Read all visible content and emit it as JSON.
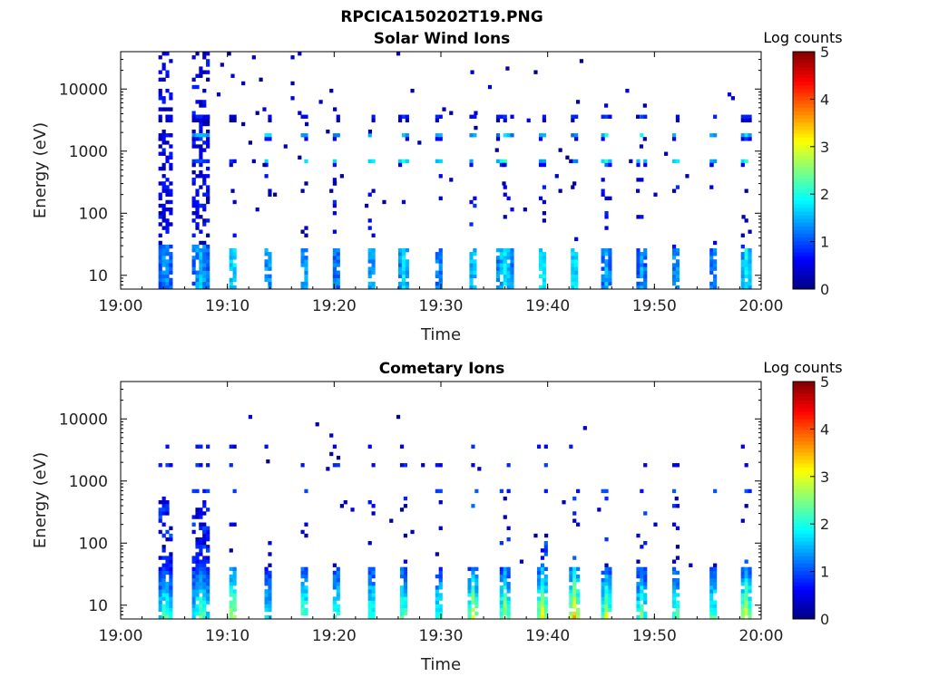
{
  "figure": {
    "title": "RPCICA150202T19.PNG"
  },
  "panels": [
    {
      "title": "Solar Wind Ions",
      "colorbar_label": "Log counts"
    },
    {
      "title": "Cometary Ions",
      "colorbar_label": "Log counts"
    }
  ],
  "chart_data": [
    {
      "type": "heatmap",
      "title": "Solar Wind Ions",
      "xlabel": "Time",
      "ylabel": "Energy (eV)",
      "x_tick_labels": [
        "19:00",
        "19:10",
        "19:20",
        "19:30",
        "19:40",
        "19:50",
        "20:00"
      ],
      "x_range_minutes": [
        0,
        60
      ],
      "y_tick_labels": [
        "10",
        "100",
        "1000",
        "10000"
      ],
      "y_tick_values": [
        10,
        100,
        1000,
        10000
      ],
      "y_scale": "log",
      "y_range": [
        6,
        40000
      ],
      "colorbar": {
        "label": "Log counts",
        "range": [
          0,
          5
        ],
        "ticks": [
          "0",
          "1",
          "2",
          "3",
          "4",
          "5"
        ]
      },
      "bursts": [
        {
          "t": 4.2,
          "w": 1.3,
          "low_e_level": 1.3,
          "band_700": 0.0,
          "band_1700": 0.6,
          "band_3500": 0.6,
          "mid_level": 0.7
        },
        {
          "t": 7.5,
          "w": 1.5,
          "low_e_level": 1.4,
          "band_700": 0.9,
          "band_1700": 1.6,
          "band_3500": 0.7,
          "mid_level": 0.7
        },
        {
          "t": 10.5,
          "w": 0.8,
          "low_e_level": 1.8,
          "band_700": 0.8,
          "band_1700": 0.5,
          "band_3500": 0.4,
          "mid_level": 0.3
        },
        {
          "t": 13.8,
          "w": 0.8,
          "low_e_level": 1.5,
          "band_700": 1.8,
          "band_1700": 1.8,
          "band_3500": 0.8,
          "mid_level": 0.3
        },
        {
          "t": 17.2,
          "w": 0.8,
          "low_e_level": 1.5,
          "band_700": 1.8,
          "band_1700": 1.6,
          "band_3500": 0.8,
          "mid_level": 0.3
        },
        {
          "t": 20.2,
          "w": 0.8,
          "low_e_level": 1.3,
          "band_700": 1.8,
          "band_1700": 1.4,
          "band_3500": 0.6,
          "mid_level": 0.3
        },
        {
          "t": 23.5,
          "w": 0.8,
          "low_e_level": 1.5,
          "band_700": 1.9,
          "band_1700": 1.6,
          "band_3500": 0.8,
          "mid_level": 0.3
        },
        {
          "t": 26.5,
          "w": 0.9,
          "low_e_level": 1.6,
          "band_700": 1.9,
          "band_1700": 1.6,
          "band_3500": 0.8,
          "mid_level": 0.3
        },
        {
          "t": 29.8,
          "w": 0.8,
          "low_e_level": 1.3,
          "band_700": 1.8,
          "band_1700": 1.6,
          "band_3500": 0.8,
          "mid_level": 0.3
        },
        {
          "t": 33.0,
          "w": 0.8,
          "low_e_level": 1.7,
          "band_700": 1.7,
          "band_1700": 1.5,
          "band_3500": 0.8,
          "mid_level": 0.3
        },
        {
          "t": 36.0,
          "w": 1.5,
          "low_e_level": 1.6,
          "band_700": 1.9,
          "band_1700": 1.5,
          "band_3500": 0.8,
          "mid_level": 0.3
        },
        {
          "t": 39.5,
          "w": 0.8,
          "low_e_level": 1.9,
          "band_700": 1.5,
          "band_1700": 1.5,
          "band_3500": 0.8,
          "mid_level": 0.3
        },
        {
          "t": 42.5,
          "w": 0.8,
          "low_e_level": 1.9,
          "band_700": 1.4,
          "band_1700": 1.3,
          "band_3500": 0.8,
          "mid_level": 0.3
        },
        {
          "t": 45.5,
          "w": 1.0,
          "low_e_level": 1.4,
          "band_700": 1.9,
          "band_1700": 1.8,
          "band_3500": 0.8,
          "mid_level": 0.3
        },
        {
          "t": 48.8,
          "w": 1.0,
          "low_e_level": 1.3,
          "band_700": 1.9,
          "band_1700": 1.7,
          "band_3500": 0.8,
          "mid_level": 0.3
        },
        {
          "t": 52.0,
          "w": 0.8,
          "low_e_level": 1.4,
          "band_700": 1.9,
          "band_1700": 1.6,
          "band_3500": 0.8,
          "mid_level": 0.3
        },
        {
          "t": 55.5,
          "w": 0.8,
          "low_e_level": 1.3,
          "band_700": 1.6,
          "band_1700": 1.5,
          "band_3500": 0.8,
          "mid_level": 0.3
        },
        {
          "t": 58.6,
          "w": 0.9,
          "low_e_level": 1.7,
          "band_700": 1.8,
          "band_1700": 1.5,
          "band_3500": 0.8,
          "mid_level": 0.3
        }
      ]
    },
    {
      "type": "heatmap",
      "title": "Cometary Ions",
      "xlabel": "Time",
      "ylabel": "Energy (eV)",
      "x_tick_labels": [
        "19:00",
        "19:10",
        "19:20",
        "19:30",
        "19:40",
        "19:50",
        "20:00"
      ],
      "x_range_minutes": [
        0,
        60
      ],
      "y_tick_labels": [
        "10",
        "100",
        "1000",
        "10000"
      ],
      "y_tick_values": [
        10,
        100,
        1000,
        10000
      ],
      "y_scale": "log",
      "y_range": [
        6,
        40000
      ],
      "colorbar": {
        "label": "Log counts",
        "range": [
          0,
          5
        ],
        "ticks": [
          "0",
          "1",
          "2",
          "3",
          "4",
          "5"
        ]
      },
      "bursts": [
        {
          "t": 4.2,
          "w": 1.3,
          "low_e_level": 2.2,
          "mid_level": 1.0,
          "sparse_high": 0.4
        },
        {
          "t": 7.5,
          "w": 1.5,
          "low_e_level": 2.3,
          "mid_level": 1.0,
          "sparse_high": 0.4
        },
        {
          "t": 10.5,
          "w": 0.8,
          "low_e_level": 3.0,
          "mid_level": 0.9,
          "sparse_high": 0.3
        },
        {
          "t": 13.8,
          "w": 0.8,
          "low_e_level": 2.0,
          "mid_level": 0.6,
          "sparse_high": 0.3
        },
        {
          "t": 17.2,
          "w": 0.8,
          "low_e_level": 2.5,
          "mid_level": 0.6,
          "sparse_high": 0.3
        },
        {
          "t": 20.2,
          "w": 0.8,
          "low_e_level": 2.3,
          "mid_level": 0.6,
          "sparse_high": 0.3
        },
        {
          "t": 23.5,
          "w": 0.8,
          "low_e_level": 2.4,
          "mid_level": 0.7,
          "sparse_high": 0.3
        },
        {
          "t": 26.5,
          "w": 0.8,
          "low_e_level": 2.5,
          "mid_level": 0.7,
          "sparse_high": 0.3
        },
        {
          "t": 29.8,
          "w": 0.8,
          "low_e_level": 2.3,
          "mid_level": 0.6,
          "sparse_high": 0.3
        },
        {
          "t": 33.0,
          "w": 0.9,
          "low_e_level": 2.8,
          "mid_level": 1.1,
          "sparse_high": 0.3
        },
        {
          "t": 36.0,
          "w": 0.9,
          "low_e_level": 2.6,
          "mid_level": 1.0,
          "sparse_high": 0.3
        },
        {
          "t": 39.5,
          "w": 1.0,
          "low_e_level": 3.0,
          "mid_level": 1.3,
          "sparse_high": 0.3
        },
        {
          "t": 42.5,
          "w": 0.9,
          "low_e_level": 3.1,
          "mid_level": 1.4,
          "sparse_high": 0.3
        },
        {
          "t": 45.5,
          "w": 0.9,
          "low_e_level": 2.6,
          "mid_level": 1.0,
          "sparse_high": 0.3
        },
        {
          "t": 48.8,
          "w": 0.9,
          "low_e_level": 2.4,
          "mid_level": 0.9,
          "sparse_high": 0.3
        },
        {
          "t": 52.0,
          "w": 0.8,
          "low_e_level": 2.4,
          "mid_level": 0.8,
          "sparse_high": 0.3
        },
        {
          "t": 55.5,
          "w": 0.8,
          "low_e_level": 2.4,
          "mid_level": 0.8,
          "sparse_high": 0.3
        },
        {
          "t": 58.6,
          "w": 0.9,
          "low_e_level": 2.9,
          "mid_level": 1.0,
          "sparse_high": 0.3
        }
      ]
    }
  ]
}
